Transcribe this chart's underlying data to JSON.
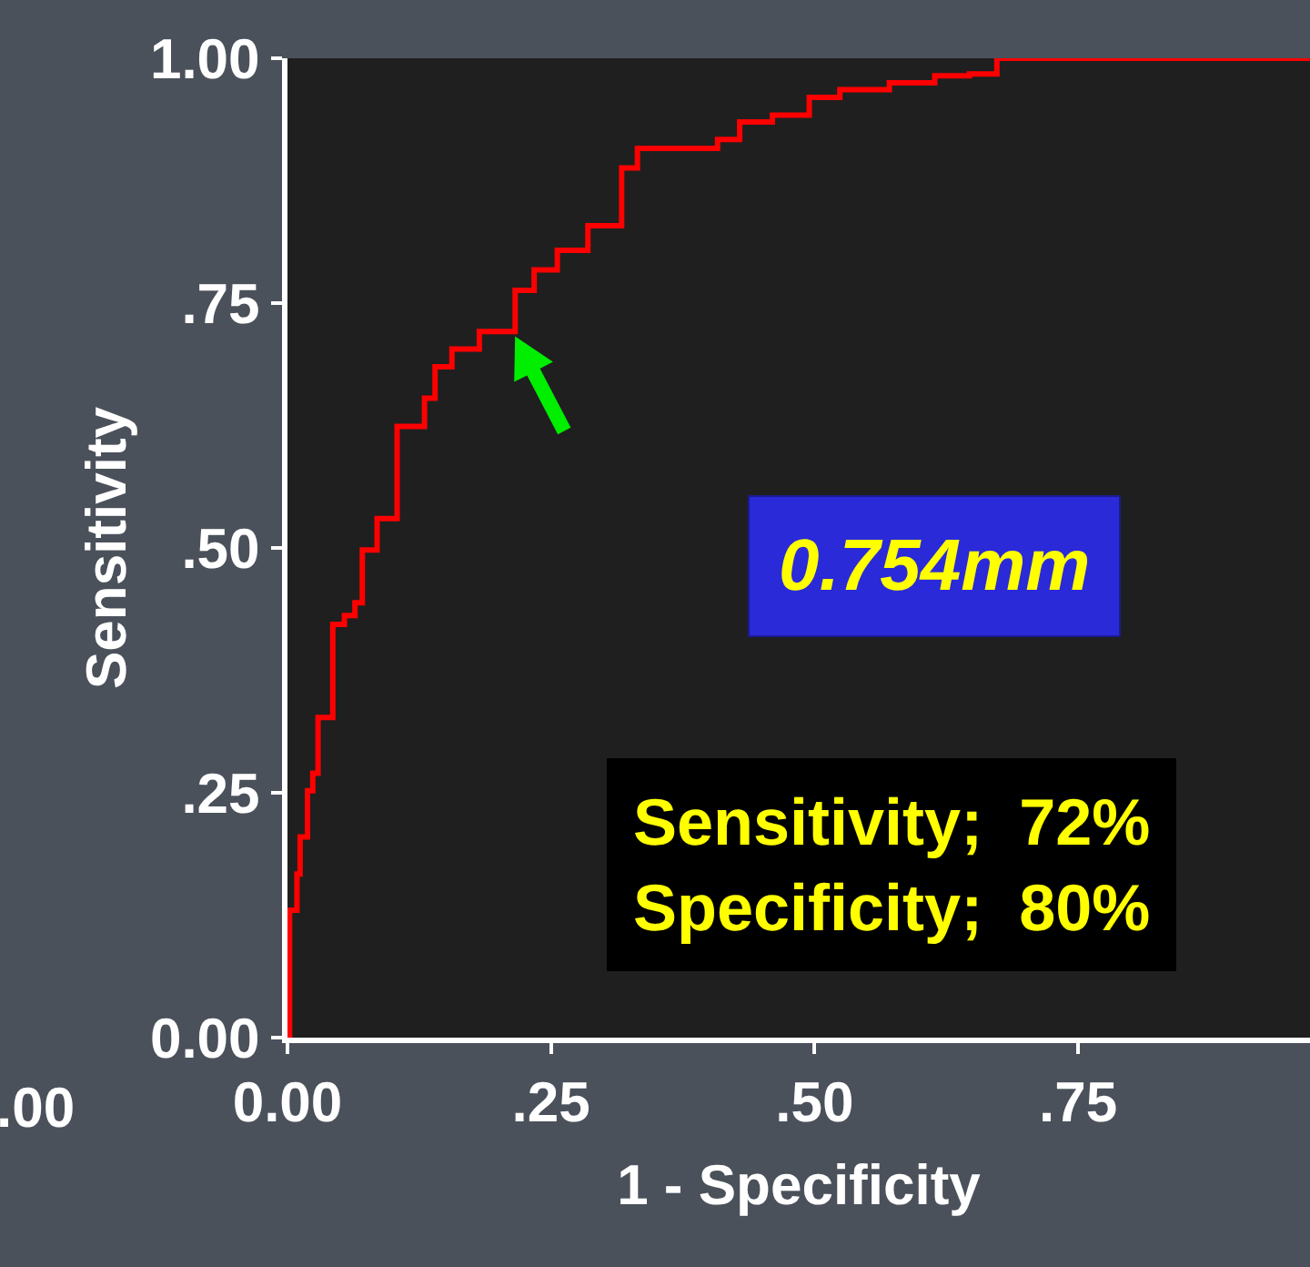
{
  "chart_data": {
    "type": "step",
    "xlabel": "1 - Specificity",
    "ylabel": "Sensitivity",
    "xlim": [
      0,
      0.97
    ],
    "xticks": [
      {
        "value": 0,
        "label": "0.00"
      },
      {
        "value": 0.25,
        "label": ".25"
      },
      {
        "value": 0.5,
        "label": ".50"
      },
      {
        "value": 0.75,
        "label": ".75"
      }
    ],
    "ylim": [
      0,
      1
    ],
    "yticks": [
      {
        "value": 0,
        "label": "0.00"
      },
      {
        "value": 0.25,
        "label": ".25"
      },
      {
        "value": 0.5,
        "label": ".50"
      },
      {
        "value": 0.75,
        "label": ".75"
      },
      {
        "value": 1,
        "label": "1.00"
      }
    ],
    "x": [
      0,
      0.002,
      0.009,
      0.012,
      0.019,
      0.024,
      0.029,
      0.043,
      0.054,
      0.064,
      0.071,
      0.085,
      0.104,
      0.13,
      0.14,
      0.156,
      0.182,
      0.216,
      0.234,
      0.256,
      0.285,
      0.317,
      0.332,
      0.408,
      0.429,
      0.46,
      0.495,
      0.524,
      0.571,
      0.614,
      0.647,
      0.673,
      0.97
    ],
    "series": [
      {
        "color": "#ff0000",
        "values": [
          0,
          0.13,
          0.167,
          0.205,
          0.252,
          0.27,
          0.327,
          0.422,
          0.431,
          0.444,
          0.498,
          0.53,
          0.624,
          0.653,
          0.685,
          0.703,
          0.721,
          0.763,
          0.784,
          0.804,
          0.829,
          0.888,
          0.908,
          0.917,
          0.935,
          0.942,
          0.96,
          0.968,
          0.975,
          0.982,
          0.984,
          1,
          1
        ]
      }
    ],
    "annotations": [
      ".00",
      "0.754mm",
      "Sensitivity;  72%\nSpecificity;  80%"
    ],
    "grid": false,
    "marker": "none",
    "line_style": "solid"
  }
}
